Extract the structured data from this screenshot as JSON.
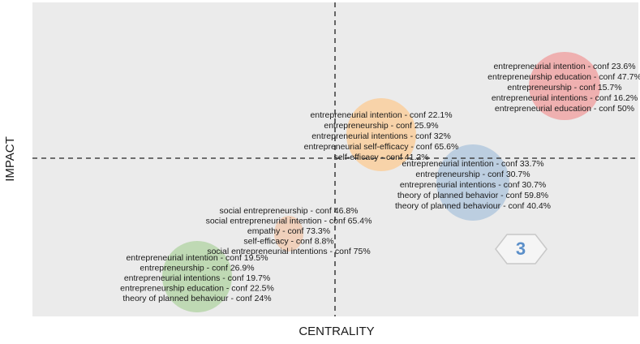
{
  "chart_data": {
    "type": "scatter",
    "xlabel": "CENTRALITY",
    "ylabel": "IMPACT",
    "grid": false,
    "quadrant_lines": "dashed",
    "clusters": [
      {
        "color": "#f28080",
        "fill_opacity": 0.55,
        "labels": [
          "entrepreneurial intention - conf 23.6%",
          "entrepreneurship education - conf 47.7%",
          "entrepreneurship - conf 15.7%",
          "entrepreneurial intentions - conf 16.2%",
          "entrepreneurial education - conf 50%"
        ]
      },
      {
        "color": "#ffc685",
        "fill_opacity": 0.65,
        "labels": [
          "entrepreneurial intention - conf 22.1%",
          "entrepreneurship - conf 25.9%",
          "entrepreneurial intentions - conf 32%",
          "entrepreneurial self-efficacy - conf 65.6%",
          "self-efficacy - conf 41.2%"
        ]
      },
      {
        "color": "#9dbad9",
        "fill_opacity": 0.6,
        "labels": [
          "entrepreneurial intention - conf 33.7%",
          "entrepreneurship - conf 30.7%",
          "entrepreneurial intentions - conf 30.7%",
          "theory of planned behavior - conf 59.8%",
          "theory of planned behaviour - conf 40.4%"
        ]
      },
      {
        "color": "#f2c4a6",
        "fill_opacity": 0.7,
        "labels": [
          "social entrepreneurship - conf 46.8%",
          "social entrepreneurial intention - conf 65.4%",
          "empathy - conf 73.3%",
          "self-efficacy - conf 8.8%",
          "social entrepreneurial intentions - conf 75%"
        ]
      },
      {
        "color": "#a8cf96",
        "fill_opacity": 0.65,
        "labels": [
          "entrepreneurial intention - conf 19.5%",
          "entrepreneurship - conf 26.9%",
          "entrepreneurial intentions - conf 19.7%",
          "entrepreneurship education - conf 22.5%",
          "theory of planned behaviour - conf 24%"
        ]
      }
    ]
  },
  "colors": {
    "plot_background": "#ebebeb",
    "axis_dash": "#444444",
    "text": "#1a1a1a",
    "logo": "#5b8fc9"
  },
  "watermark": {
    "icon": "hexagon-logo-icon",
    "text": "3"
  }
}
